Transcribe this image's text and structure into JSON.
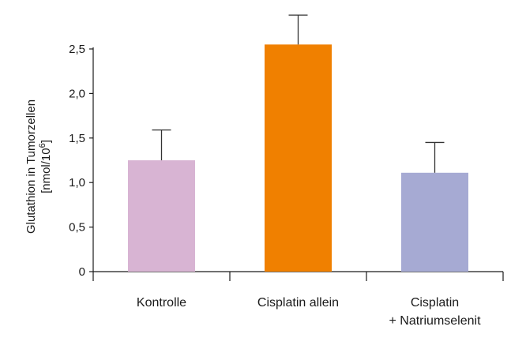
{
  "chart_data": {
    "type": "bar",
    "title": "",
    "xlabel": "",
    "ylabel": "Glutathion in Tumorzellen",
    "ylabel_unit_prefix": "[nmol/10",
    "ylabel_unit_exponent": "6",
    "ylabel_unit_suffix": "]",
    "ylim": [
      0,
      2.5
    ],
    "yticks": [
      0,
      0.5,
      1.0,
      1.5,
      2.0,
      2.5
    ],
    "ytick_labels": [
      "0",
      "0,5",
      "1,0",
      "1,5",
      "2,0",
      "2,5"
    ],
    "categories": [
      [
        "Kontrolle"
      ],
      [
        "Cisplatin allein"
      ],
      [
        "Cisplatin",
        "+ Natriumselenit"
      ]
    ],
    "values": [
      1.25,
      2.55,
      1.11
    ],
    "errors": [
      0.34,
      0.33,
      0.34
    ],
    "colors": [
      "#d8b4d3",
      "#f08000",
      "#a6aad3"
    ],
    "grid": false,
    "legend": "none"
  }
}
